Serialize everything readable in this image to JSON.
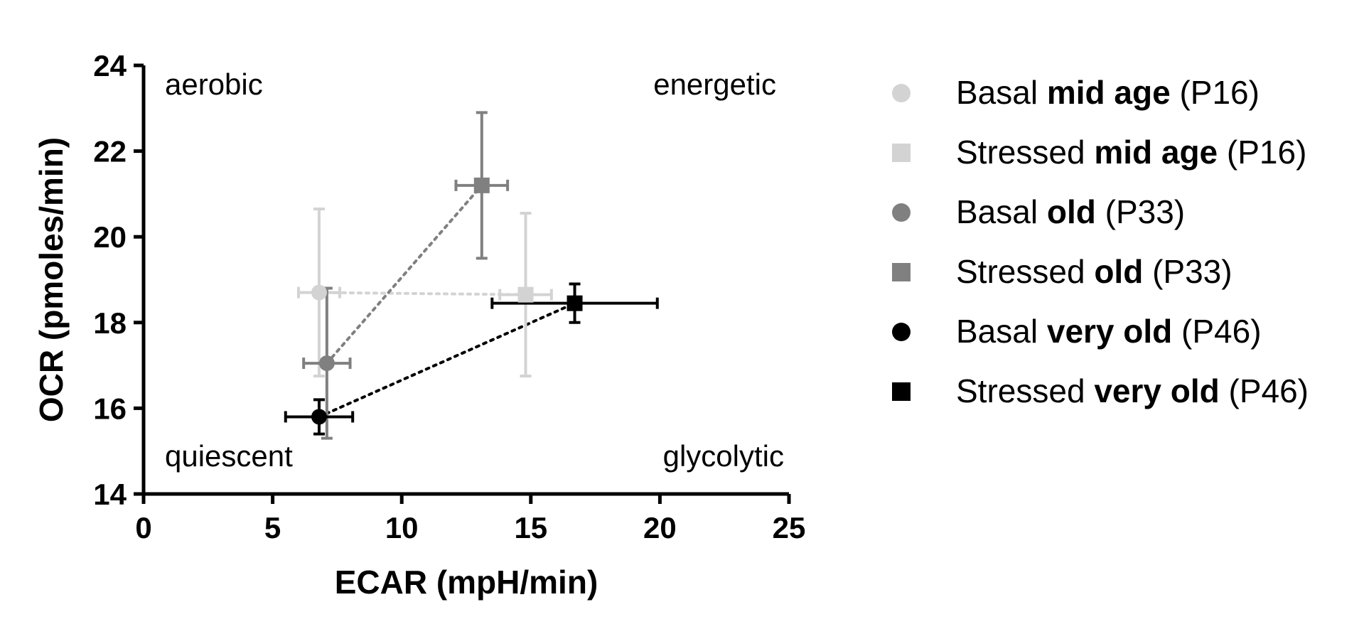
{
  "chart_data": {
    "type": "scatter",
    "xlabel": "ECAR (mpH/min)",
    "ylabel": "OCR (pmoles/min)",
    "xlim": [
      0,
      25
    ],
    "ylim": [
      14,
      24
    ],
    "xticks": [
      "0",
      "5",
      "10",
      "15",
      "20",
      "25"
    ],
    "yticks": [
      "14",
      "16",
      "18",
      "20",
      "22",
      "24"
    ],
    "grid": false,
    "legend_position": "right",
    "quadrant_labels": {
      "top_left": "aerobic",
      "top_right": "energetic",
      "bottom_left": "quiescent",
      "bottom_right": "glycolytic"
    },
    "series": [
      {
        "name": "Basal mid age (P16)",
        "name_parts": [
          "Basal ",
          "mid age",
          " (P16)"
        ],
        "marker": "circle",
        "color": "#d3d3d3",
        "x": 6.8,
        "y": 18.7,
        "x_err": 0.8,
        "y_err": 1.95
      },
      {
        "name": "Stressed mid age (P16)",
        "name_parts": [
          "Stressed ",
          "mid age",
          " (P16)"
        ],
        "marker": "square",
        "color": "#d3d3d3",
        "x": 14.8,
        "y": 18.65,
        "x_err": 1.0,
        "y_err": 1.9
      },
      {
        "name": "Basal old (P33)",
        "name_parts": [
          "Basal ",
          "old",
          " (P33)"
        ],
        "marker": "circle",
        "color": "#808080",
        "x": 7.1,
        "y": 17.05,
        "x_err": 0.9,
        "y_err": 1.75
      },
      {
        "name": "Stressed old (P33)",
        "name_parts": [
          "Stressed ",
          "old",
          " (P33)"
        ],
        "marker": "square",
        "color": "#808080",
        "x": 13.1,
        "y": 21.2,
        "x_err": 1.0,
        "y_err": 1.7
      },
      {
        "name": "Basal very old (P46)",
        "name_parts": [
          "Basal ",
          "very old",
          " (P46)"
        ],
        "marker": "circle",
        "color": "#000000",
        "x": 6.8,
        "y": 15.8,
        "x_err": 1.3,
        "y_err": 0.4
      },
      {
        "name": "Stressed very old (P46)",
        "name_parts": [
          "Stressed ",
          "very old",
          " (P46)"
        ],
        "marker": "square",
        "color": "#000000",
        "x": 16.7,
        "y": 18.45,
        "x_err": 3.2,
        "y_err": 0.45
      }
    ],
    "connections": [
      {
        "from": 0,
        "to": 1,
        "color": "#d3d3d3"
      },
      {
        "from": 2,
        "to": 3,
        "color": "#808080"
      },
      {
        "from": 4,
        "to": 5,
        "color": "#000000"
      }
    ]
  }
}
